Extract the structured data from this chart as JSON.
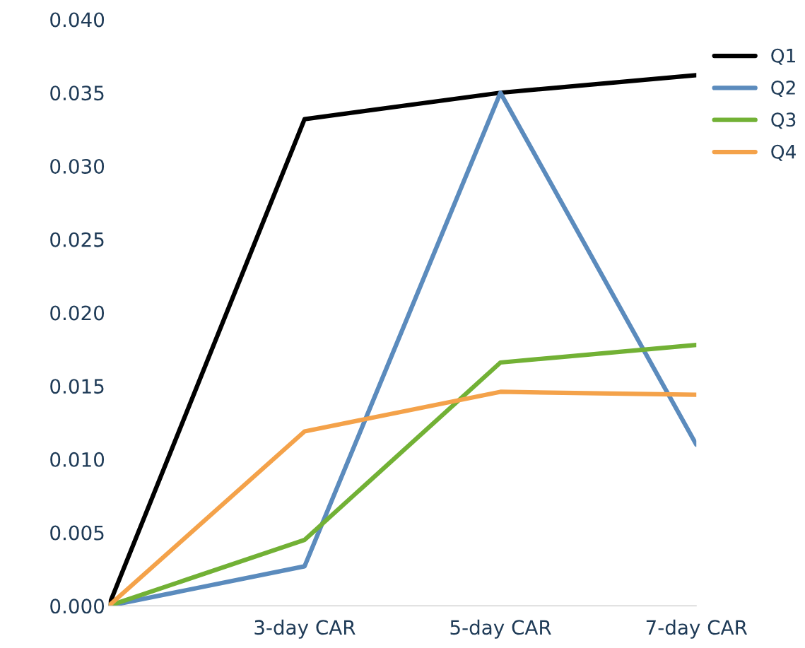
{
  "chart_data": {
    "type": "line",
    "categories": [
      null,
      "3-day CAR",
      "5-day CAR",
      "7-day CAR"
    ],
    "series": [
      {
        "name": "Q1",
        "color": "#000000",
        "values": [
          0.0,
          0.0332,
          0.035,
          0.0362
        ]
      },
      {
        "name": "Q2",
        "color": "#5b8bbd",
        "values": [
          0.0,
          0.0027,
          0.035,
          0.011
        ]
      },
      {
        "name": "Q3",
        "color": "#72b135",
        "values": [
          0.0,
          0.0045,
          0.0166,
          0.0178
        ]
      },
      {
        "name": "Q4",
        "color": "#f4a24a",
        "values": [
          0.0,
          0.0119,
          0.0146,
          0.0144
        ]
      }
    ],
    "ylim": [
      0,
      0.04
    ],
    "yticks": [
      {
        "value": 0,
        "label": "0.000"
      },
      {
        "value": 0.005,
        "label": "0.005"
      },
      {
        "value": 0.01,
        "label": "0.010"
      },
      {
        "value": 0.015,
        "label": "0.015"
      },
      {
        "value": 0.02,
        "label": "0.020"
      },
      {
        "value": 0.025,
        "label": "0.025"
      },
      {
        "value": 0.03,
        "label": "0.030"
      },
      {
        "value": 0.035,
        "label": "0.035"
      },
      {
        "value": 0.04,
        "label": "0.040"
      }
    ],
    "legend": "top right",
    "grid": false,
    "marker": "none",
    "line_style": "solid"
  }
}
